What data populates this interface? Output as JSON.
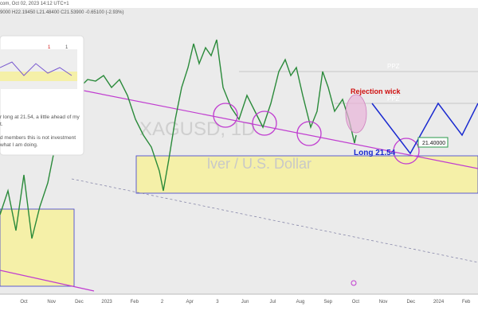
{
  "header": {
    "title": "com, Oct 02, 2023 14:12 UTC+1",
    "ohlc": "9000  H22.19450  L21.48400  C21.53900  -0.65100 (-2.93%)"
  },
  "watermark": {
    "symbol": "XAGUSD, 1D",
    "name": "lver / U.S. Dollar"
  },
  "annotations": {
    "ppz_top": "PPZ",
    "ppz_mid": "PPZ",
    "rejection": "Rejection wick",
    "long": "Long 21.54",
    "price_tag": "21.40000"
  },
  "popup": {
    "likes": "1",
    "boosts": "1",
    "lines": [
      "r long at 21.54, a little ahead of my",
      "t.",
      "d members this is not investment",
      " what I am doing."
    ]
  },
  "x_axis": [
    "Oct",
    "Nov",
    "Dec",
    "2023",
    "Feb",
    "2",
    "Apr",
    "3",
    "Jun",
    "Jul",
    "Aug",
    "Sep",
    "Oct",
    "Nov",
    "Dec",
    "2024",
    "Feb"
  ]
}
